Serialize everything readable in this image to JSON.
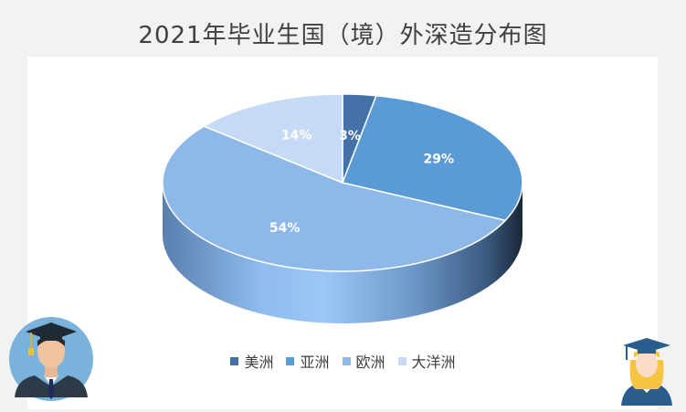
{
  "title": "2021年毕业生国（境）外深造分布图",
  "chart_data": {
    "type": "pie",
    "categories": [
      "美洲",
      "亚洲",
      "欧洲",
      "大洋洲"
    ],
    "values": [
      3,
      29,
      54,
      14
    ],
    "labels": [
      "3%",
      "29%",
      "54%",
      "14%"
    ],
    "colors": [
      "#4472a8",
      "#5b9bd5",
      "#8db8e8",
      "#c5daf4"
    ],
    "legend_position": "bottom",
    "style": "3d"
  }
}
